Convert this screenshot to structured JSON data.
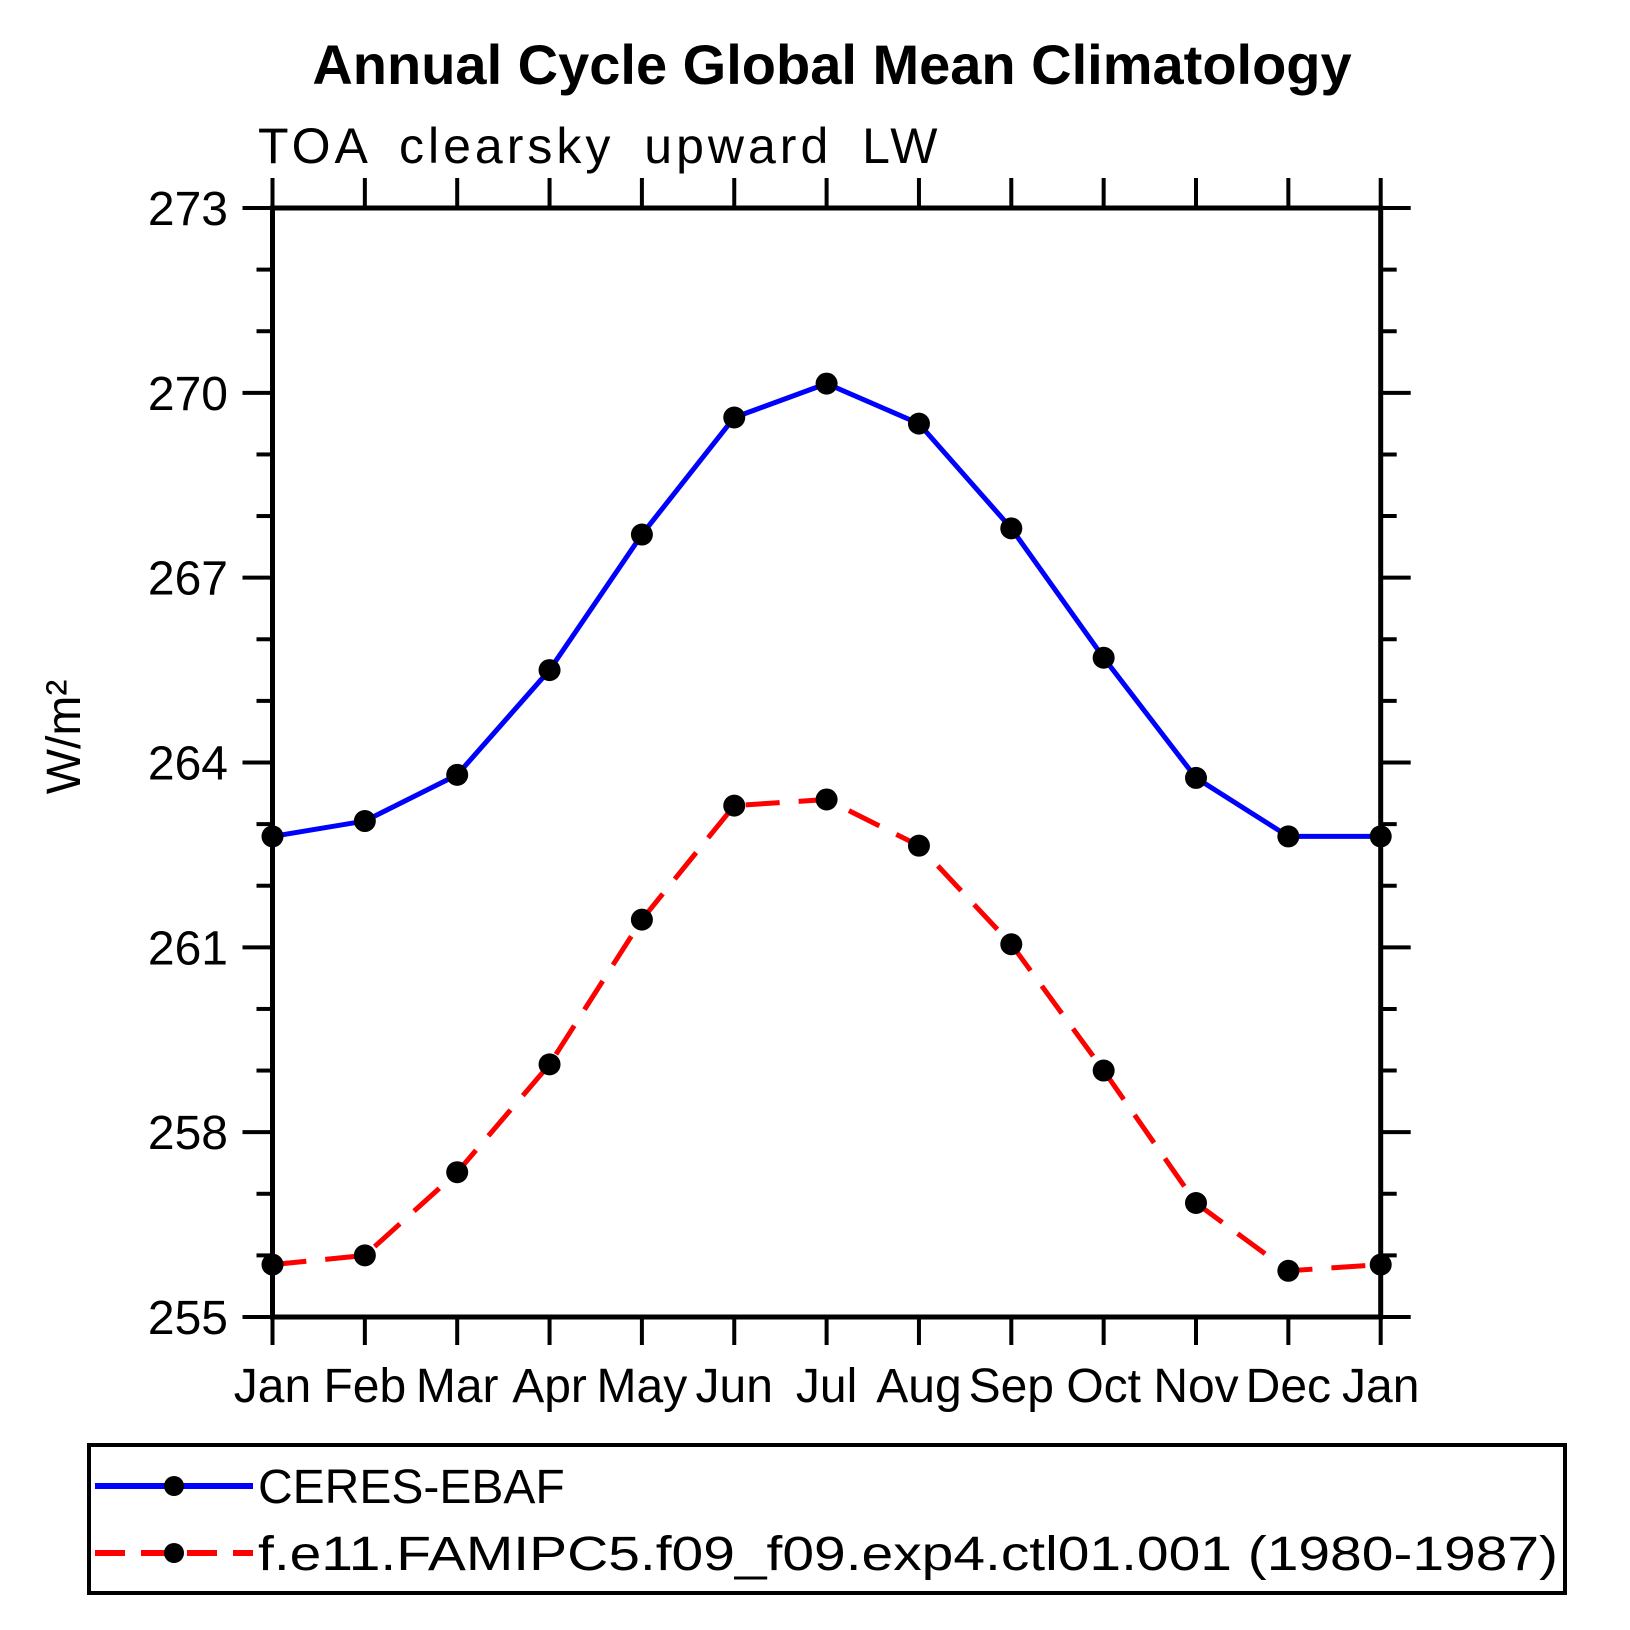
{
  "chart_data": {
    "type": "line",
    "title": "Annual Cycle Global Mean Climatology",
    "subtitle": "TOA clearsky upward LW",
    "ylabel": "W/m²",
    "xlabel": "",
    "categories": [
      "Jan",
      "Feb",
      "Mar",
      "Apr",
      "May",
      "Jun",
      "Jul",
      "Aug",
      "Sep",
      "Oct",
      "Nov",
      "Dec",
      "Jan"
    ],
    "series": [
      {
        "name": "CERES-EBAF",
        "color": "#0000ff",
        "style": "solid",
        "marker": "filled-circle",
        "values": [
          262.8,
          263.05,
          263.8,
          265.5,
          267.7,
          269.6,
          270.15,
          269.5,
          267.8,
          265.7,
          263.75,
          262.8,
          262.8
        ]
      },
      {
        "name": "f.e11.FAMIPC5.f09_f09.exp4.ctl01.001 (1980-1987)",
        "color": "#ff0000",
        "style": "dashed",
        "marker": "filled-circle",
        "values": [
          255.85,
          256.0,
          257.35,
          259.1,
          261.45,
          263.3,
          263.4,
          262.65,
          261.05,
          259.0,
          256.85,
          255.75,
          255.85
        ]
      }
    ],
    "marker_color": "#000000",
    "ylim": [
      255,
      273
    ],
    "ytick_major_step": 3,
    "ytick_minor_step": 1,
    "ytick_labels": [
      "255",
      "258",
      "261",
      "264",
      "267",
      "270",
      "273"
    ],
    "grid": "off",
    "legend_position": "bottom"
  }
}
